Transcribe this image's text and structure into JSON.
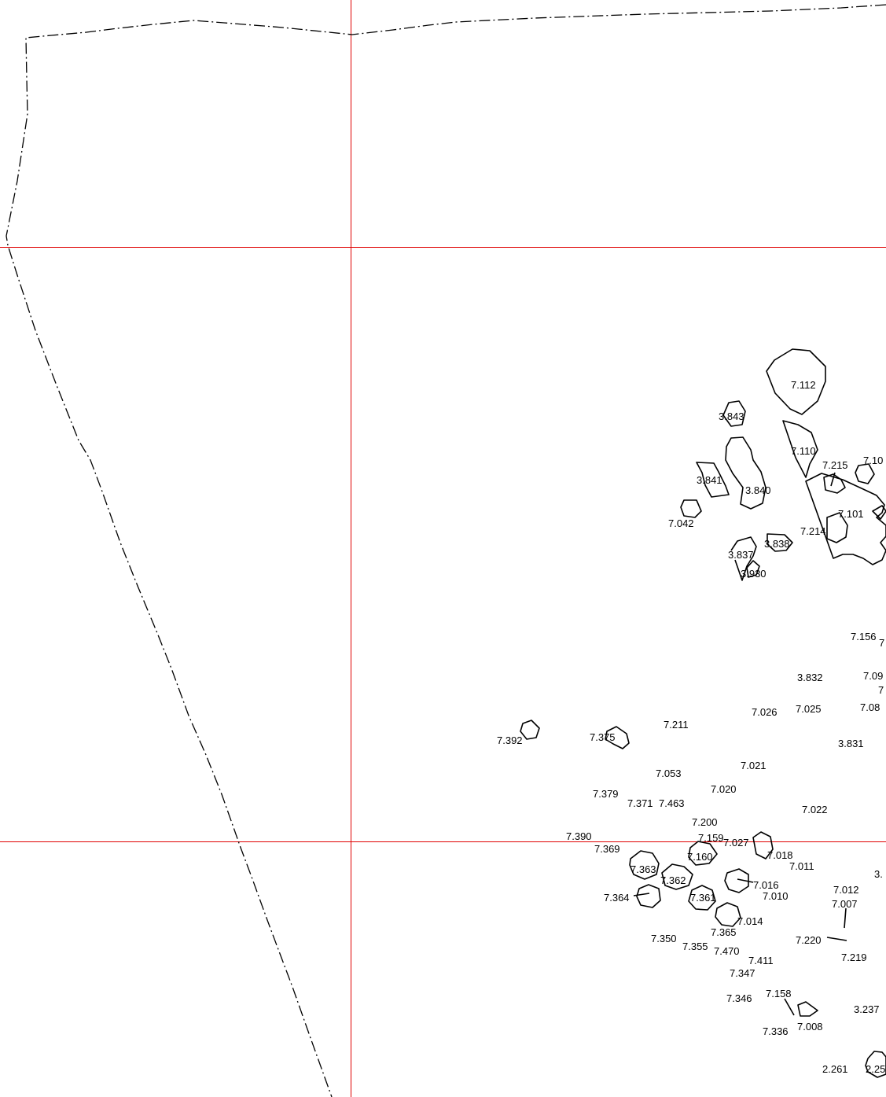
{
  "labels": {
    "l7112": "7.112",
    "l3843": "3.843",
    "l7110": "7.110",
    "l7215": "7.215",
    "l710x": "7.10",
    "l3841": "3.841",
    "l3840": "3.840",
    "l7042": "7.042",
    "l7101": "7.101",
    "l7214": "7.214",
    "l3838": "3.838",
    "l3837": "3.837",
    "l3930": "3.930",
    "l7156": "7.156",
    "l3832": "3.832",
    "l709x": "7.09",
    "l7026": "7.026",
    "l7025": "7.025",
    "l708x": "7.08",
    "l7211": "7.211",
    "l7392": "7.392",
    "l7375": "7.375",
    "l3831": "3.831",
    "l7021": "7.021",
    "l7053": "7.053",
    "l7020": "7.020",
    "l7379": "7.379",
    "l7371": "7.371",
    "l7463": "7.463",
    "l7022": "7.022",
    "l7200": "7.200",
    "l7390": "7.390",
    "l7159": "7.159",
    "l7027": "7.027",
    "l7369": "7.369",
    "l7160": "7.160",
    "l7018": "7.018",
    "l7011": "7.011",
    "l3x": "3.",
    "l7363": "7.363",
    "l7362": "7.362",
    "l7016": "7.016",
    "l7012": "7.012",
    "l7364": "7.364",
    "l7361": "7.361",
    "l7010": "7.010",
    "l7007": "7.007",
    "l7014": "7.014",
    "l7365": "7.365",
    "l7350": "7.350",
    "l7355": "7.355",
    "l7470": "7.470",
    "l7220": "7.220",
    "l7219": "7.219",
    "l7411": "7.411",
    "l7347": "7.347",
    "l7158": "7.158",
    "l7346": "7.346",
    "l3237": "3.237",
    "l7336": "7.336",
    "l7008": "7.008",
    "l2261": "2.261",
    "l225x": "2.25",
    "l7ax": "7",
    "l7bx": "7"
  }
}
